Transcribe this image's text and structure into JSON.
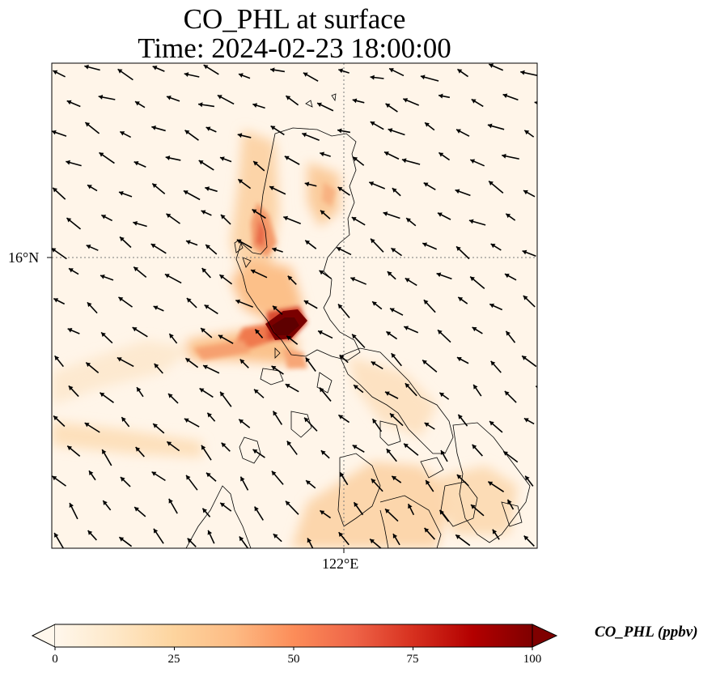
{
  "title": {
    "line1": "CO_PHL at surface",
    "line2": "Time: 2024-02-23 18:00:00"
  },
  "map": {
    "latitude_tick": "16°N",
    "longitude_tick": "122°E",
    "gridlines": "dotted",
    "wind_arrows": true
  },
  "colorbar": {
    "label": "CO_PHL (ppbv)",
    "ticks": [
      "0",
      "25",
      "50",
      "75",
      "100"
    ],
    "range": [
      0,
      100
    ],
    "colormap": "OrRd",
    "extend": "both",
    "colors": [
      "#fff7ec",
      "#fee8c8",
      "#fdd49e",
      "#fdbb84",
      "#fc8d59",
      "#ef6548",
      "#d7301f",
      "#b30000",
      "#7f0000"
    ]
  }
}
